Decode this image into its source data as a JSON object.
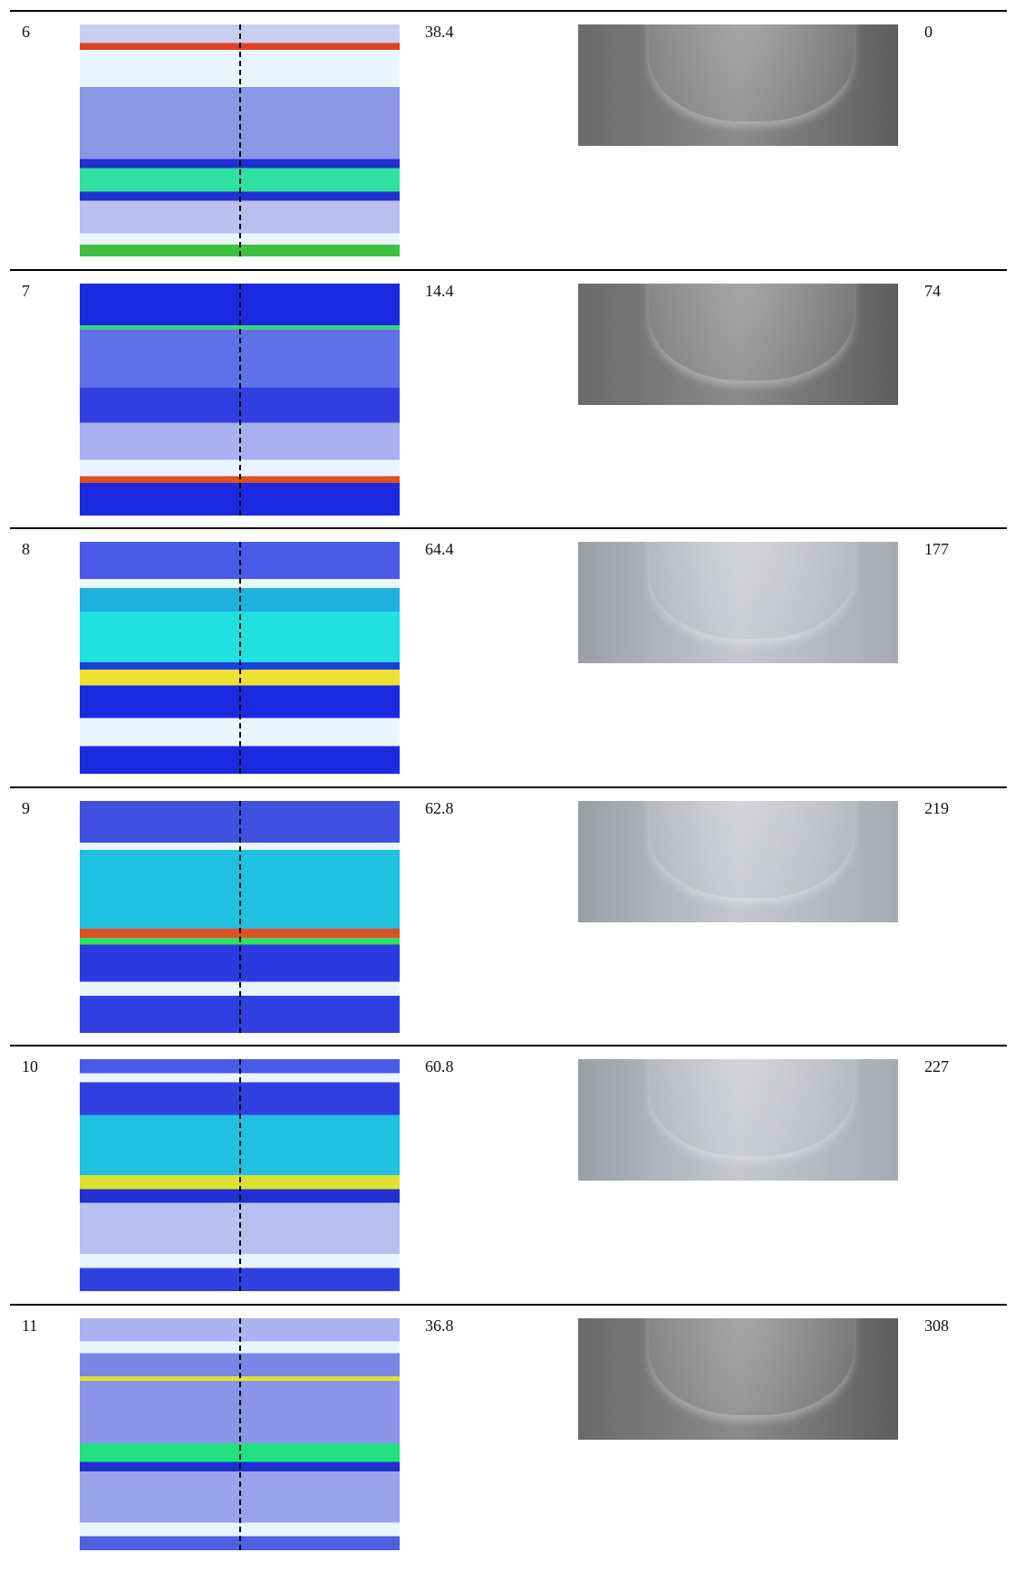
{
  "table": {
    "rows": [
      [
        "6",
        "38.4",
        "0"
      ],
      [
        "7",
        "14.4",
        "74"
      ],
      [
        "8",
        "64.4",
        "177"
      ],
      [
        "9",
        "62.8",
        "219"
      ],
      [
        "10",
        "60.8",
        "227"
      ],
      [
        "11",
        "36.8",
        "308"
      ]
    ]
  }
}
